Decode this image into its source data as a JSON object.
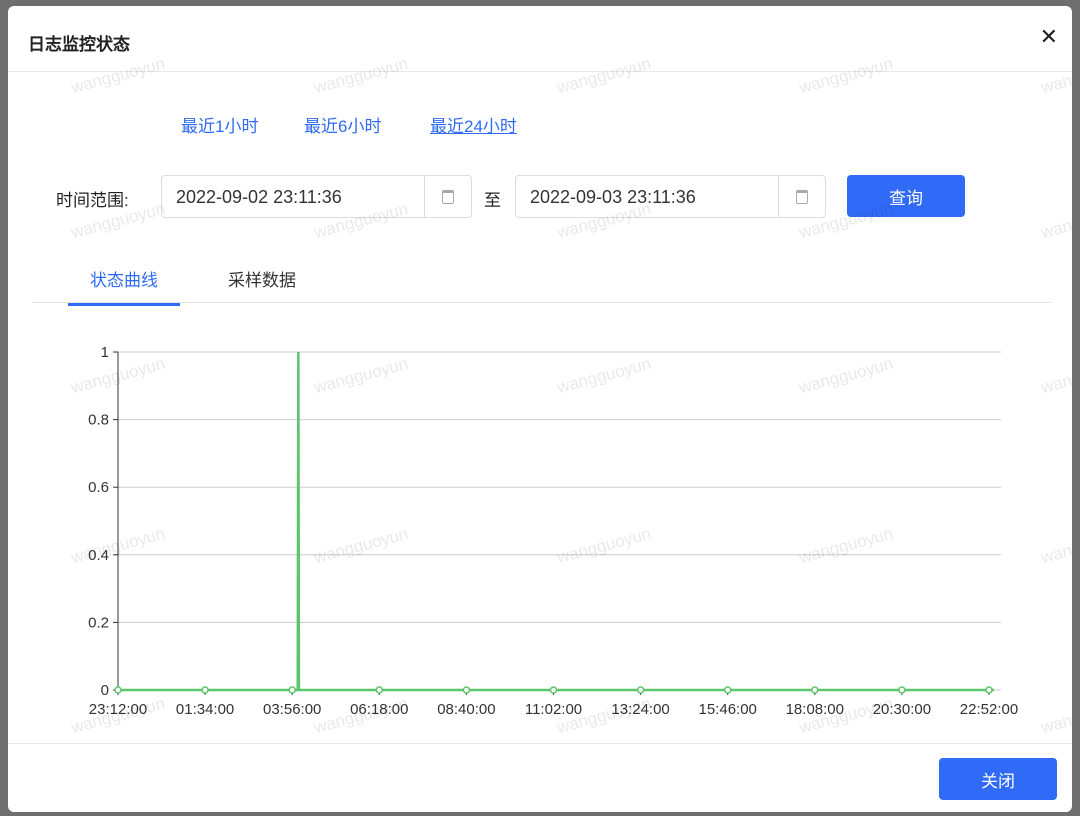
{
  "dialog": {
    "title": "日志监控状态",
    "close_icon": "close-icon"
  },
  "quick_ranges": [
    "最近1小时",
    "最近6小时",
    "最近24小时"
  ],
  "filter": {
    "label": "时间范围:",
    "start": "2022-09-02 23:11:36",
    "separator": "至",
    "end": "2022-09-03 23:11:36",
    "query_label": "查询"
  },
  "tabs": [
    {
      "label": "状态曲线",
      "active": true
    },
    {
      "label": "采样数据",
      "active": false
    }
  ],
  "footer": {
    "close_label": "关闭"
  },
  "watermark": "wangguoyun",
  "colors": {
    "accent": "#2f6bf6",
    "series": "#5cc46b"
  },
  "chart_data": {
    "type": "line",
    "x_ticks": [
      "23:12:00",
      "01:34:00",
      "03:56:00",
      "06:18:00",
      "08:40:00",
      "11:02:00",
      "13:24:00",
      "15:46:00",
      "18:08:00",
      "20:30:00",
      "22:52:00"
    ],
    "y_ticks": [
      "0",
      "0.2",
      "0.4",
      "0.6",
      "0.8",
      "1"
    ],
    "ylim": [
      0,
      1
    ],
    "grid": true,
    "points": [
      [
        "23:12:00",
        0
      ],
      [
        "01:34:00",
        0
      ],
      [
        "03:56:00",
        0
      ],
      [
        "04:05:00",
        0
      ],
      [
        "04:06:00",
        1
      ],
      [
        "04:07:00",
        0
      ],
      [
        "06:18:00",
        0
      ],
      [
        "08:40:00",
        0
      ],
      [
        "11:02:00",
        0
      ],
      [
        "13:24:00",
        0
      ],
      [
        "15:46:00",
        0
      ],
      [
        "18:08:00",
        0
      ],
      [
        "20:30:00",
        0
      ],
      [
        "22:52:00",
        0
      ],
      [
        "23:00:00",
        0
      ]
    ]
  }
}
